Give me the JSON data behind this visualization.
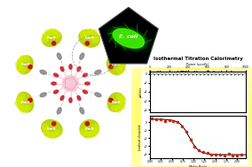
{
  "title": "Isothermal Titration Calorimetry",
  "xlabel_bottom": "Molar Ratio",
  "ylabel_top": "μal/sec",
  "ylabel_bottom": "kcal/mole of injectant",
  "n_fimh": 8,
  "n_mannose": 12,
  "fullerene_color": "#f8c8d8",
  "mannose_color": "#cc2233",
  "linker_color": "#cccccc",
  "pillar_color": "#888888",
  "protein_color": "#b8d000",
  "protein_color2": "#d4ee00",
  "binding_site_color": "#cc1111",
  "itc_bg": "#f0f040",
  "ecoli_body_color": "#44ee00",
  "ecoli_glow": "#00ff00",
  "white": "#ffffff",
  "black": "#000000"
}
